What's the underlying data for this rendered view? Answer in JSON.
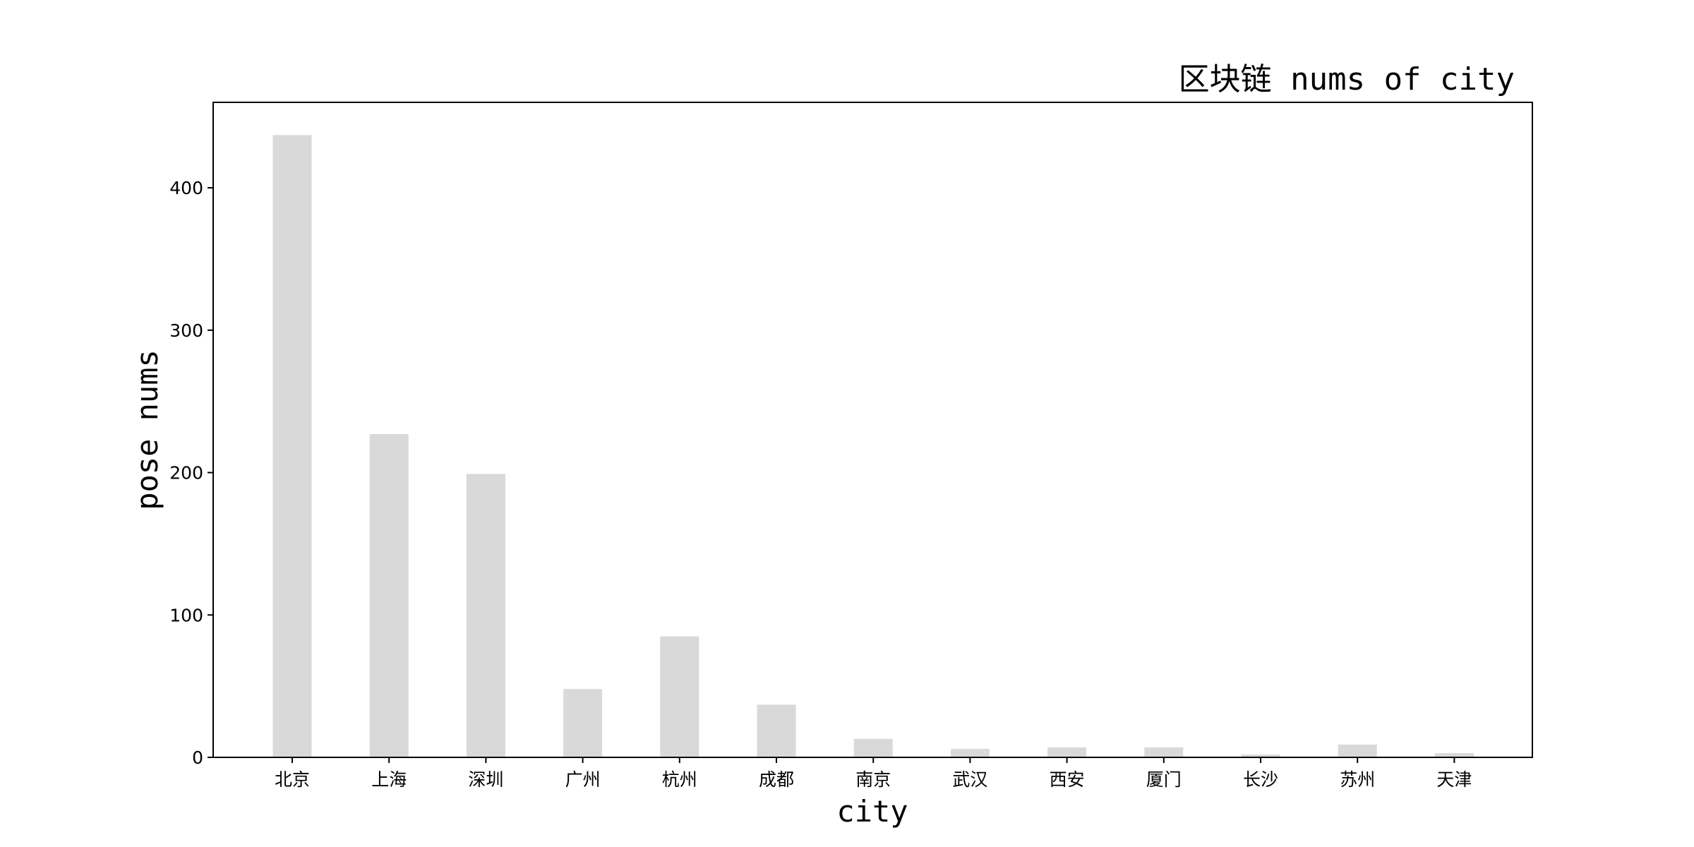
{
  "chart_data": {
    "type": "bar",
    "title": "区块链 nums of city",
    "xlabel": "city",
    "ylabel": "pose nums",
    "categories": [
      "北京",
      "上海",
      "深圳",
      "广州",
      "杭州",
      "成都",
      "南京",
      "武汉",
      "西安",
      "厦门",
      "长沙",
      "苏州",
      "天津"
    ],
    "values": [
      437,
      227,
      199,
      48,
      85,
      37,
      13,
      6,
      7,
      7,
      2,
      9,
      3
    ],
    "ylim": [
      0,
      460
    ],
    "yticks": [
      0,
      100,
      200,
      300,
      400
    ],
    "grid": false,
    "legend": "none",
    "bar_color": "#d9d9d9"
  }
}
